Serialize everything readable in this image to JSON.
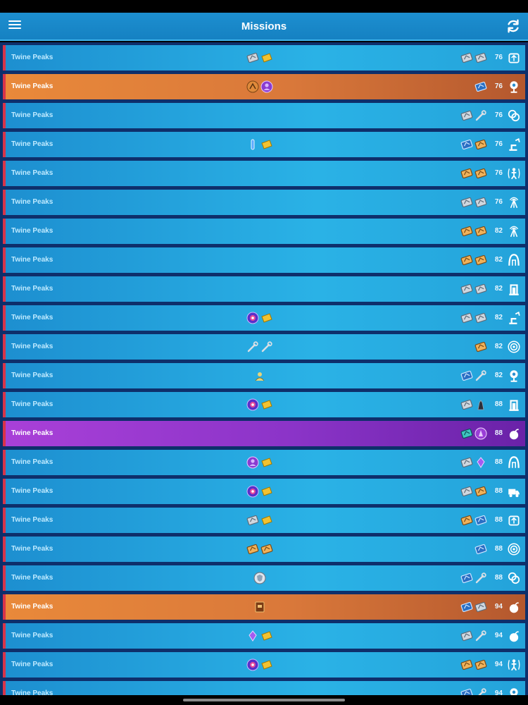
{
  "header": {
    "title": "Missions"
  },
  "colors": {
    "common": "#1d8fd0",
    "legendary": "#e9893a",
    "epic": "#a940d8",
    "accent_bar": "#d8344a"
  },
  "missions": [
    {
      "zone": "Twine Peaks",
      "power": "76",
      "rarity": "common",
      "rewards": [
        "schematic-gray-icon",
        "gold-bar-icon"
      ],
      "alerts": [
        "schematic-gray-icon",
        "schematic-gray-icon"
      ],
      "type": "radar-box-icon"
    },
    {
      "zone": "Twine Peaks",
      "power": "76",
      "rarity": "legendary",
      "rewards": [
        "hero-orange-icon",
        "survivor-purple-icon"
      ],
      "alerts": [
        "schematic-blue-icon"
      ],
      "type": "eliminate-icon"
    },
    {
      "zone": "Twine Peaks",
      "power": "76",
      "rarity": "common",
      "rewards": [],
      "alerts": [
        "schematic-gray-icon",
        "wrench-icon"
      ],
      "type": "rescue-icon"
    },
    {
      "zone": "Twine Peaks",
      "power": "76",
      "rarity": "common",
      "rewards": [
        "vial-blue-icon",
        "gold-bar-icon"
      ],
      "alerts": [
        "schematic-blue-icon",
        "schematic-orange-icon"
      ],
      "type": "repair-icon"
    },
    {
      "zone": "Twine Peaks",
      "power": "76",
      "rarity": "common",
      "rewards": [],
      "alerts": [
        "schematic-orange-icon",
        "schematic-orange-icon"
      ],
      "type": "survivor-icon"
    },
    {
      "zone": "Twine Peaks",
      "power": "76",
      "rarity": "common",
      "rewards": [],
      "alerts": [
        "schematic-gray-icon",
        "schematic-gray-icon"
      ],
      "type": "radar-tower-icon"
    },
    {
      "zone": "Twine Peaks",
      "power": "82",
      "rarity": "common",
      "rewards": [],
      "alerts": [
        "schematic-orange-icon",
        "schematic-orange-icon"
      ],
      "type": "radar-tower-icon"
    },
    {
      "zone": "Twine Peaks",
      "power": "82",
      "rarity": "common",
      "rewards": [],
      "alerts": [
        "schematic-orange-icon",
        "schematic-orange-icon"
      ],
      "type": "shelter-icon"
    },
    {
      "zone": "Twine Peaks",
      "power": "82",
      "rarity": "common",
      "rewards": [],
      "alerts": [
        "schematic-gray-icon",
        "schematic-gray-icon"
      ],
      "type": "atlas-icon"
    },
    {
      "zone": "Twine Peaks",
      "power": "82",
      "rarity": "common",
      "rewards": [
        "vbucks-orb-icon",
        "gold-bar-icon"
      ],
      "alerts": [
        "schematic-gray-icon",
        "schematic-gray-icon"
      ],
      "type": "repair-icon"
    },
    {
      "zone": "Twine Peaks",
      "power": "82",
      "rarity": "common",
      "rewards": [
        "wrench-icon",
        "wrench-icon"
      ],
      "alerts": [
        "schematic-orange-icon"
      ],
      "type": "storm-icon"
    },
    {
      "zone": "Twine Peaks",
      "power": "82",
      "rarity": "common",
      "rewards": [
        "survivor-gold-icon"
      ],
      "alerts": [
        "schematic-blue-icon",
        "wrench-icon"
      ],
      "type": "eliminate-icon"
    },
    {
      "zone": "Twine Peaks",
      "power": "88",
      "rarity": "common",
      "rewards": [
        "vbucks-orb-icon",
        "gold-bar-icon"
      ],
      "alerts": [
        "schematic-gray-icon",
        "hero-dark-icon"
      ],
      "type": "atlas-icon"
    },
    {
      "zone": "Twine Peaks",
      "power": "88",
      "rarity": "epic",
      "rewards": [],
      "alerts": [
        "schematic-teal-icon",
        "hero-purple-icon"
      ],
      "type": "bomb-icon"
    },
    {
      "zone": "Twine Peaks",
      "power": "88",
      "rarity": "common",
      "rewards": [
        "survivor-purple-icon",
        "gold-bar-icon"
      ],
      "alerts": [
        "schematic-gray-icon",
        "crystal-purple-icon"
      ],
      "type": "shelter-icon"
    },
    {
      "zone": "Twine Peaks",
      "power": "88",
      "rarity": "common",
      "rewards": [
        "vbucks-orb-icon",
        "gold-bar-icon"
      ],
      "alerts": [
        "schematic-gray-icon",
        "schematic-orange-icon"
      ],
      "type": "truck-icon"
    },
    {
      "zone": "Twine Peaks",
      "power": "88",
      "rarity": "common",
      "rewards": [
        "schematic-gray-icon",
        "gold-bar-icon"
      ],
      "alerts": [
        "schematic-orange-icon",
        "schematic-blue-icon"
      ],
      "type": "radar-box-icon"
    },
    {
      "zone": "Twine Peaks",
      "power": "88",
      "rarity": "common",
      "rewards": [
        "schematic-orange-icon",
        "schematic-orange-icon"
      ],
      "alerts": [
        "schematic-blue-icon"
      ],
      "type": "storm-icon"
    },
    {
      "zone": "Twine Peaks",
      "power": "88",
      "rarity": "common",
      "rewards": [
        "shield-token-icon"
      ],
      "alerts": [
        "schematic-blue-icon",
        "wrench-icon"
      ],
      "type": "rescue-icon"
    },
    {
      "zone": "Twine Peaks",
      "power": "94",
      "rarity": "legendary",
      "rewards": [
        "book-icon"
      ],
      "alerts": [
        "schematic-blue-icon",
        "schematic-gray-icon"
      ],
      "type": "bomb-icon"
    },
    {
      "zone": "Twine Peaks",
      "power": "94",
      "rarity": "common",
      "rewards": [
        "crystal-purple-icon",
        "gold-bar-icon"
      ],
      "alerts": [
        "schematic-gray-icon",
        "wrench-icon"
      ],
      "type": "bomb-icon"
    },
    {
      "zone": "Twine Peaks",
      "power": "94",
      "rarity": "common",
      "rewards": [
        "vbucks-orb-icon",
        "gold-bar-icon"
      ],
      "alerts": [
        "schematic-orange-icon",
        "schematic-orange-icon"
      ],
      "type": "survivor-icon"
    },
    {
      "zone": "Twine Peaks",
      "power": "94",
      "rarity": "common",
      "rewards": [],
      "alerts": [
        "schematic-blue-icon",
        "wrench-icon"
      ],
      "type": "eliminate-icon"
    }
  ]
}
